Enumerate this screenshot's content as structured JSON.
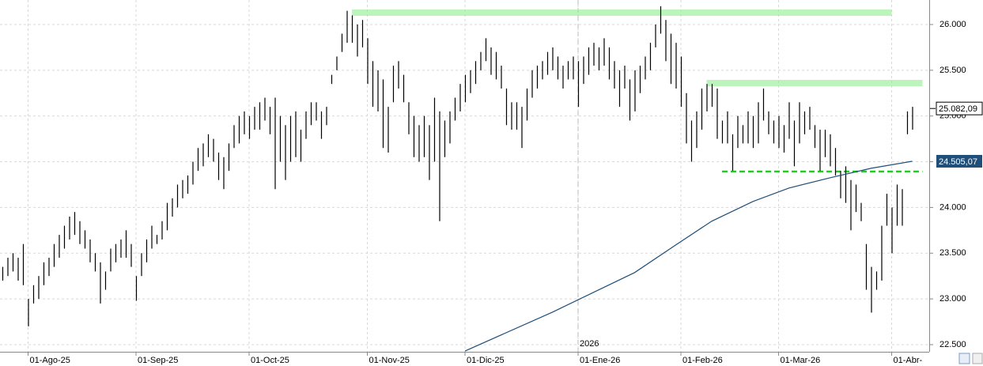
{
  "chart_data": {
    "type": "ohlc",
    "color": "#000000",
    "xlim": [
      -0.46,
      180.31
    ],
    "xticks": [
      {
        "value": 5,
        "label": "01-Ago-25"
      },
      {
        "value": 26,
        "label": "01-Sep-25"
      },
      {
        "value": 48,
        "label": "01-Oct-25"
      },
      {
        "value": 71,
        "label": "01-Nov-25"
      },
      {
        "value": 90,
        "label": "01-Dic-25"
      },
      {
        "value": 112,
        "label": "01-Ene-26"
      },
      {
        "value": 132,
        "label": "01-Feb-26"
      },
      {
        "value": 151,
        "label": "01-Mar-26"
      },
      {
        "value": 173,
        "label": "01-Abr-"
      }
    ],
    "ylim": [
      22422,
      26268
    ],
    "yticks": [
      {
        "value": 22500,
        "label": "22.500"
      },
      {
        "value": 23000,
        "label": "23.000"
      },
      {
        "value": 23500,
        "label": "23.500"
      },
      {
        "value": 24000,
        "label": "24.000"
      },
      {
        "value": 24500,
        "label": "24.500"
      },
      {
        "value": 25000,
        "label": "25.000"
      },
      {
        "value": 25500,
        "label": "25.500"
      },
      {
        "value": 26000,
        "label": "26.000"
      }
    ],
    "grid": true,
    "high": [
      23350,
      23450,
      23500,
      23450,
      23600,
      23000,
      23150,
      23250,
      23400,
      23450,
      23600,
      23700,
      23800,
      23900,
      23950,
      23850,
      23750,
      23650,
      23500,
      23400,
      23300,
      23550,
      23600,
      23650,
      23750,
      23600,
      23250,
      23500,
      23650,
      23800,
      23700,
      23850,
      24050,
      24100,
      24250,
      24300,
      24350,
      24500,
      24650,
      24700,
      24800,
      24750,
      24600,
      24550,
      24700,
      24900,
      25000,
      25050,
      25000,
      25100,
      25150,
      25200,
      25100,
      25200,
      25000,
      24900,
      25000,
      25050,
      24850,
      25050,
      25150,
      25150,
      25050,
      25100,
      25450,
      25650,
      25900,
      26150,
      26100,
      26000,
      26050,
      25850,
      25600,
      25500,
      25400,
      25100,
      25550,
      25600,
      25450,
      25150,
      25000,
      24900,
      25000,
      24900,
      25200,
      25050,
      24950,
      25050,
      25200,
      25350,
      25450,
      25500,
      25600,
      25700,
      25850,
      25750,
      25700,
      25550,
      25300,
      25150,
      25150,
      25100,
      25300,
      25500,
      25550,
      25600,
      25700,
      25750,
      25650,
      25550,
      25600,
      25650,
      25600,
      25650,
      25750,
      25800,
      25750,
      25850,
      25750,
      25600,
      25500,
      25550,
      25400,
      25500,
      25550,
      25650,
      25800,
      26000,
      26200,
      26050,
      25900,
      25800,
      25650,
      25250,
      24950,
      25050,
      25300,
      25350,
      25350,
      25300,
      24950,
      25050,
      24800,
      25000,
      24900,
      25050,
      25000,
      25150,
      25300,
      25050,
      24950,
      25000,
      24900,
      25150,
      24950,
      25150,
      25050,
      25100,
      24900,
      24850,
      24850,
      24800,
      24650,
      24400,
      24450,
      24300,
      24250,
      24050,
      23600,
      23350,
      23300,
      23800,
      24150,
      24000,
      24250,
      24200,
      25050,
      25100
    ],
    "low": [
      23200,
      23250,
      23300,
      23200,
      23150,
      22700,
      22950,
      23000,
      23150,
      23250,
      23350,
      23450,
      23550,
      23650,
      23700,
      23600,
      23550,
      23400,
      23300,
      22950,
      23100,
      23300,
      23400,
      23450,
      23450,
      23350,
      22980,
      23250,
      23400,
      23550,
      23600,
      23650,
      23750,
      23900,
      24000,
      24100,
      24150,
      24250,
      24400,
      24450,
      24550,
      24500,
      24300,
      24200,
      24400,
      24650,
      24700,
      24800,
      24750,
      24850,
      24850,
      24950,
      24800,
      24200,
      24500,
      24300,
      24500,
      24550,
      24500,
      24750,
      24900,
      24950,
      24750,
      24900,
      25350,
      25500,
      25700,
      25800,
      25800,
      25650,
      25750,
      25350,
      25100,
      25050,
      24650,
      24600,
      25150,
      25300,
      25150,
      24800,
      24550,
      24500,
      24550,
      24300,
      24500,
      23850,
      24550,
      24700,
      24950,
      25050,
      25150,
      25250,
      25350,
      25500,
      25600,
      25450,
      25400,
      25300,
      24900,
      24850,
      24850,
      24650,
      24950,
      25200,
      25300,
      25400,
      25450,
      25500,
      25400,
      25300,
      25400,
      25400,
      25100,
      25350,
      25450,
      25550,
      25500,
      25550,
      25400,
      25300,
      25100,
      25300,
      24950,
      25050,
      25250,
      25400,
      25500,
      25750,
      25900,
      25600,
      25350,
      25300,
      25100,
      24700,
      24500,
      24650,
      24850,
      25050,
      25100,
      24750,
      24700,
      24700,
      24400,
      24650,
      24700,
      24700,
      24650,
      24700,
      24950,
      24800,
      24700,
      24650,
      24600,
      24750,
      24450,
      24700,
      24800,
      24850,
      24650,
      24400,
      24550,
      24450,
      24350,
      24100,
      24050,
      23750,
      23950,
      23850,
      23100,
      22850,
      23100,
      23200,
      23800,
      23500,
      23800,
      23800,
      24800,
      24850
    ],
    "resistance": [
      {
        "value": 26130,
        "from": 68,
        "to": 173
      },
      {
        "value": 25360,
        "from": 137,
        "to": 179
      }
    ],
    "support": {
      "value": 24393,
      "from": 140,
      "to": 179
    },
    "moving_average": {
      "color": "#1f4e79",
      "x": [
        90,
        107,
        123,
        131,
        138,
        146,
        153,
        161,
        169,
        177
      ],
      "values": [
        22430,
        22855,
        23288,
        23590,
        23850,
        24065,
        24212,
        24324,
        24428,
        24505.07
      ],
      "last_label": "24.505,07"
    },
    "last_price": {
      "value": 25082.09,
      "label": "25.082,09"
    },
    "annotation": {
      "text": "2026",
      "x": 112
    }
  }
}
